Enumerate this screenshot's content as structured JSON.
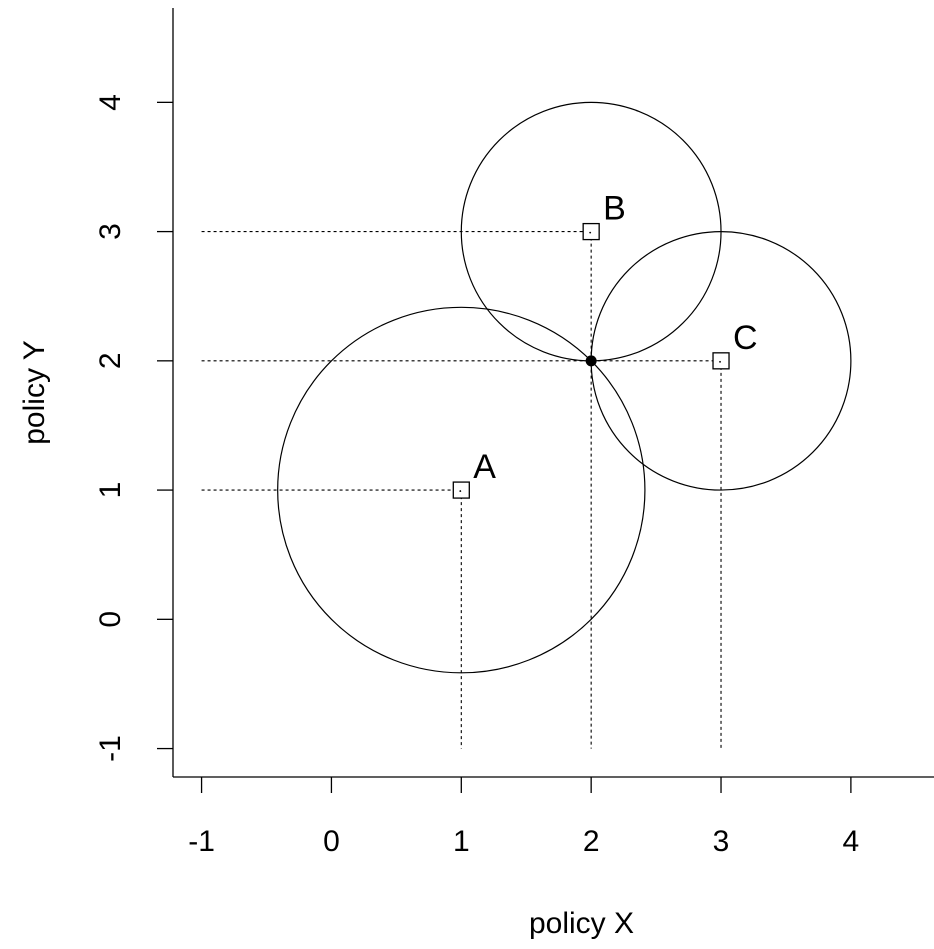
{
  "chart_data": {
    "type": "scatter",
    "xlabel": "policy X",
    "ylabel": "policy Y",
    "xlim": [
      -1.22,
      4.64
    ],
    "ylim": [
      -1.22,
      4.73
    ],
    "xticks": [
      -1,
      0,
      1,
      2,
      3,
      4
    ],
    "yticks": [
      -1,
      0,
      1,
      2,
      3,
      4
    ],
    "ideal_points": [
      {
        "label": "A",
        "x": 1,
        "y": 1,
        "radius": 1.414
      },
      {
        "label": "B",
        "x": 2,
        "y": 3,
        "radius": 1.0
      },
      {
        "label": "C",
        "x": 3,
        "y": 2,
        "radius": 1.0
      }
    ],
    "outcome_point": {
      "x": 2,
      "y": 2
    },
    "guide_line_min": -1
  }
}
